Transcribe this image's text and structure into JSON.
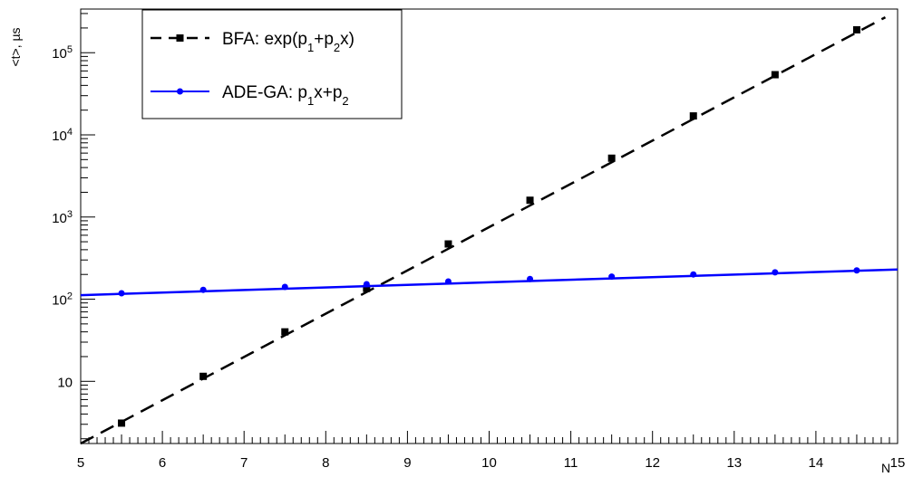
{
  "chart_data": {
    "type": "scatter",
    "xlabel": "N",
    "ylabel": "<t>, µs",
    "xlim": [
      5,
      15
    ],
    "ylim": [
      1.75,
      340000
    ],
    "yscale": "log",
    "x_ticks": [
      "5",
      "6",
      "7",
      "8",
      "9",
      "10",
      "11",
      "12",
      "13",
      "14",
      "15"
    ],
    "y_ticks": [
      {
        "value": 10,
        "base": "10",
        "exp": ""
      },
      {
        "value": 100,
        "base": "10",
        "exp": "2"
      },
      {
        "value": 1000,
        "base": "10",
        "exp": "3"
      },
      {
        "value": 10000,
        "base": "10",
        "exp": "4"
      },
      {
        "value": 100000,
        "base": "10",
        "exp": "5"
      }
    ],
    "grid": false,
    "legend_position": "top-left",
    "series": [
      {
        "name": "BFA:  exp(p1+p2x)",
        "legend": {
          "main": "BFA:  exp(p",
          "sub1": "1",
          "mid": "+p",
          "sub2": "2",
          "tail": "x)"
        },
        "color": "#000000",
        "marker": "square",
        "line_style": "dashed",
        "x": [
          5.5,
          6.5,
          7.5,
          8.5,
          9.5,
          10.5,
          11.5,
          12.5,
          13.5,
          14.5
        ],
        "y": [
          3.1,
          11.5,
          40,
          135,
          470,
          1600,
          5200,
          17000,
          54000,
          190000
        ],
        "fit_line": {
          "x": [
            5.0,
            14.85
          ],
          "y": [
            1.75,
            270000
          ]
        }
      },
      {
        "name": "ADE-GA: p1x+p2",
        "legend": {
          "main": "ADE-GA: p",
          "sub1": "1",
          "mid": "x+p",
          "sub2": "2",
          "tail": ""
        },
        "color": "#0000ff",
        "marker": "circle",
        "line_style": "solid",
        "x": [
          5.5,
          6.5,
          7.5,
          8.5,
          9.5,
          10.5,
          11.5,
          12.5,
          13.5,
          14.5
        ],
        "y": [
          118,
          130,
          141,
          152,
          164,
          176,
          188,
          200,
          212,
          224
        ],
        "fit_line": {
          "x": [
            5.0,
            15.0
          ],
          "y": [
            112,
            230
          ]
        }
      }
    ]
  }
}
